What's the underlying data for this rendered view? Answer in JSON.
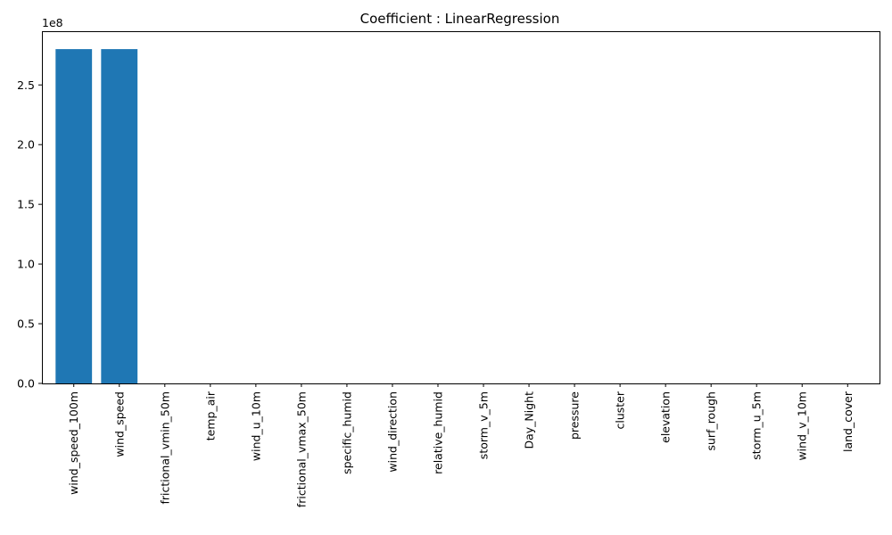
{
  "chart_data": {
    "type": "bar",
    "title": "Coefficient : LinearRegression",
    "xlabel": "",
    "ylabel": "",
    "y_offset_label": "1e8",
    "y_scale": 100000000,
    "ylim": [
      0,
      295000000
    ],
    "yticks": [
      0,
      50000000,
      100000000,
      150000000,
      200000000,
      250000000
    ],
    "ytick_labels": [
      "0.0",
      "0.5",
      "1.0",
      "1.5",
      "2.0",
      "2.5"
    ],
    "grid": false,
    "bar_color": "#1f77b4",
    "categories": [
      "wind_speed_100m",
      "wind_speed",
      "frictional_vmin_50m",
      "temp_air",
      "wind_u_10m",
      "frictional_vmax_50m",
      "specific_humid",
      "wind_direction",
      "relative_humid",
      "storm_v_5m",
      "Day_Night",
      "pressure",
      "cluster",
      "elevation",
      "surf_rough",
      "storm_u_5m",
      "wind_v_10m",
      "land_cover"
    ],
    "values": [
      280000000,
      280000000,
      0,
      0,
      0,
      0,
      0,
      0,
      0,
      0,
      0,
      0,
      0,
      0,
      0,
      0,
      0,
      0
    ]
  }
}
